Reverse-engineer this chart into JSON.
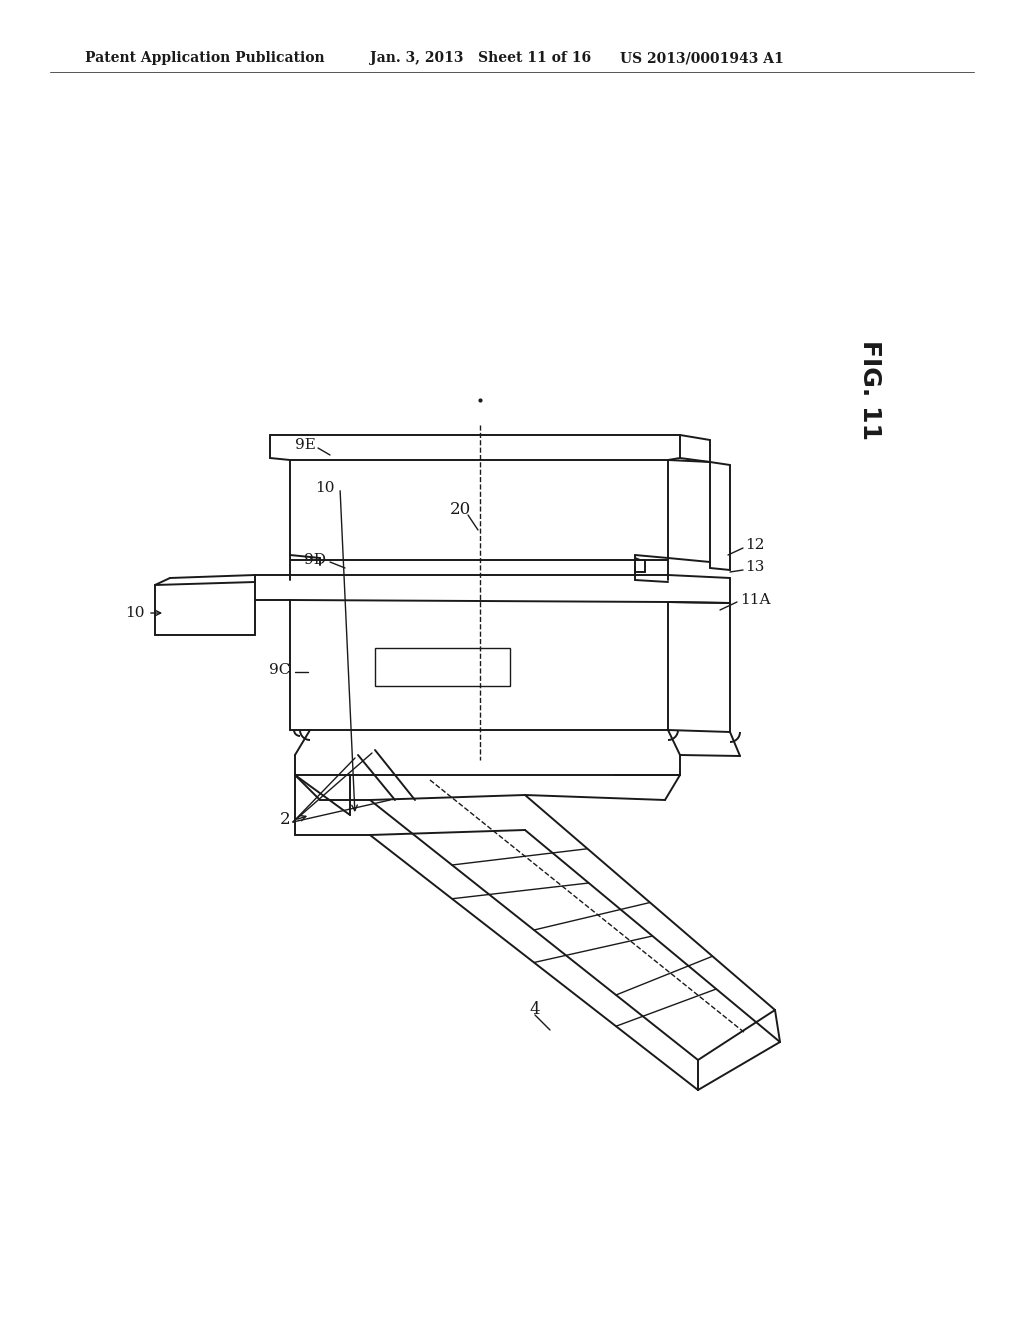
{
  "bg_color": "#ffffff",
  "header_left": "Patent Application Publication",
  "header_mid": "Jan. 3, 2013   Sheet 11 of 16",
  "header_right": "US 2013/0001943 A1",
  "fig_label": "FIG. 11",
  "line_color": "#1a1a1a",
  "line_width": 1.4
}
